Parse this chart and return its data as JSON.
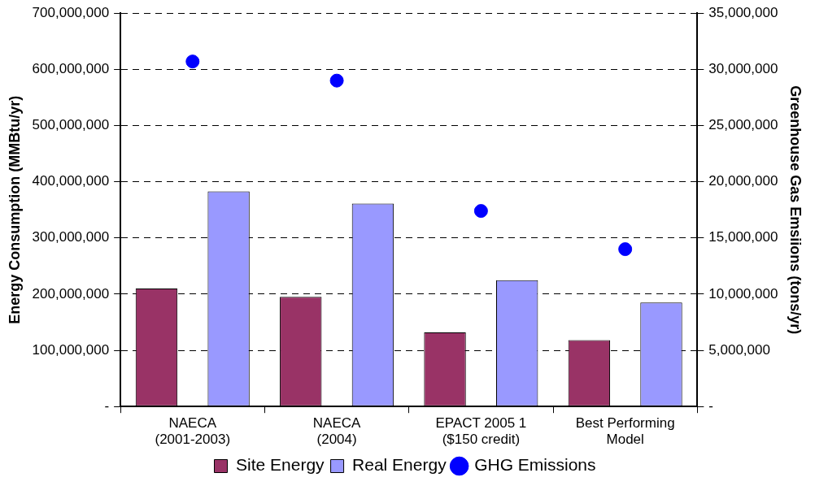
{
  "chart_data": {
    "type": "bar",
    "ylabel": "Energy Consumption (MMBtu/yr)",
    "y2label": "Greenhouse Gas Emsiions (tons/yr)",
    "categories": [
      "NAECA\n(2001-2003)",
      "NAECA\n(2004)",
      "EPACT 2005 1\n($150 credit)",
      "Best Performing\nModel"
    ],
    "series": [
      {
        "name": "Site Energy",
        "color": "#993366",
        "values": [
          210000000,
          195000000,
          132000000,
          118000000
        ]
      },
      {
        "name": "Real Energy",
        "color": "#9999ff",
        "values": [
          383000000,
          361000000,
          225000000,
          185000000
        ]
      },
      {
        "name": "GHG Emissions",
        "type": "scatter",
        "axis": "y2",
        "color": "#0000ff",
        "values": [
          30700000,
          29000000,
          17400000,
          14000000
        ]
      }
    ],
    "ylim": [
      0,
      700000000
    ],
    "yticks": [
      {
        "value": 0,
        "label": "-"
      },
      {
        "value": 100000000,
        "label": "100,000,000"
      },
      {
        "value": 200000000,
        "label": "200,000,000"
      },
      {
        "value": 300000000,
        "label": "300,000,000"
      },
      {
        "value": 400000000,
        "label": "400,000,000"
      },
      {
        "value": 500000000,
        "label": "500,000,000"
      },
      {
        "value": 600000000,
        "label": "600,000,000"
      },
      {
        "value": 700000000,
        "label": "700,000,000"
      }
    ],
    "y2lim": [
      0,
      35000000
    ],
    "y2ticks": [
      {
        "value": 0,
        "label": "-"
      },
      {
        "value": 5000000,
        "label": "5,000,000"
      },
      {
        "value": 10000000,
        "label": "10,000,000"
      },
      {
        "value": 15000000,
        "label": "15,000,000"
      },
      {
        "value": 20000000,
        "label": "20,000,000"
      },
      {
        "value": 25000000,
        "label": "25,000,000"
      },
      {
        "value": 30000000,
        "label": "30,000,000"
      },
      {
        "value": 35000000,
        "label": "35,000,000"
      }
    ],
    "grid": "y",
    "legend": "bottom",
    "marker": "circle"
  }
}
